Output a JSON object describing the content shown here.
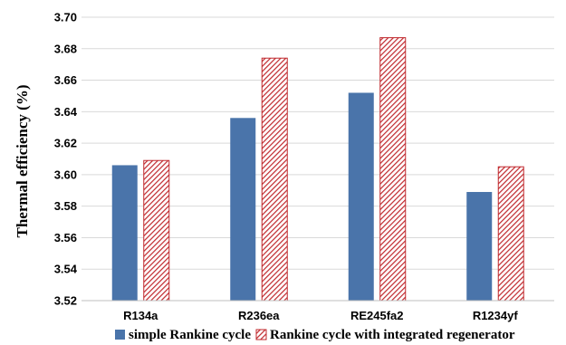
{
  "chart_data": {
    "type": "bar",
    "title": "",
    "xlabel": "",
    "ylabel": "Thermal efficiency (%)",
    "categories": [
      "R134a",
      "R236ea",
      "RE245fa2",
      "R1234yf"
    ],
    "ylim": [
      3.52,
      3.7
    ],
    "yticks": [
      "3.52",
      "3.54",
      "3.56",
      "3.58",
      "3.60",
      "3.62",
      "3.64",
      "3.66",
      "3.68",
      "3.70"
    ],
    "grid": true,
    "legend_position": "bottom",
    "series": [
      {
        "name": "simple Rankine cycle",
        "values": [
          3.606,
          3.636,
          3.652,
          3.589
        ],
        "color": "#4a74aa",
        "pattern": "solid"
      },
      {
        "name": "Rankine cycle with integrated regenerator",
        "values": [
          3.609,
          3.674,
          3.687,
          3.605
        ],
        "color": "#c0282d",
        "pattern": "hatched"
      }
    ]
  }
}
